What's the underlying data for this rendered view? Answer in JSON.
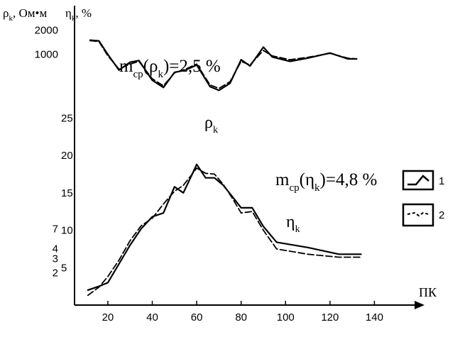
{
  "chart_data": {
    "type": "line",
    "x_axis": {
      "label": "ПК",
      "ticks": [
        20,
        40,
        60,
        80,
        100,
        120,
        140
      ],
      "range": [
        5,
        160
      ]
    },
    "rho_axis": {
      "label": "ρk, Ом•м",
      "scale": "log",
      "ticks": [
        2,
        3,
        4,
        7,
        1000,
        2000
      ],
      "tick_labels": [
        "2",
        "3",
        "4",
        "7",
        "1000",
        "2000"
      ],
      "range": [
        0.8,
        4000
      ]
    },
    "eta_axis": {
      "label": "ηk, %",
      "ticks": [
        5,
        10,
        15,
        20,
        25
      ],
      "range": [
        0,
        40
      ]
    },
    "annotations": {
      "m_rho": "mср(ρk)=2,5 %",
      "m_eta": "mср(ηk)=4,8 %",
      "rho_curve": "ρk",
      "eta_curve": "ηk"
    },
    "legend": {
      "position": "right",
      "items": [
        {
          "label": "1",
          "style": "solid"
        },
        {
          "label": "2",
          "style": "dashed"
        }
      ]
    },
    "series": [
      {
        "name": "ρk 1",
        "axis": "rho",
        "style": "solid",
        "x": [
          12,
          16,
          20,
          25,
          30,
          34,
          40,
          45,
          50,
          55,
          60,
          66,
          70,
          75,
          80,
          84,
          90,
          94,
          102,
          110,
          120,
          128,
          132
        ],
        "y": [
          1500,
          1470,
          1000,
          640,
          800,
          840,
          480,
          390,
          600,
          640,
          740,
          400,
          360,
          440,
          860,
          720,
          1230,
          930,
          820,
          900,
          1040,
          880,
          880
        ]
      },
      {
        "name": "ρk 2",
        "axis": "rho",
        "style": "dashed",
        "x": [
          12,
          16,
          20,
          25,
          30,
          34,
          40,
          45,
          50,
          55,
          60,
          66,
          70,
          75,
          80,
          84,
          90,
          94,
          102,
          110,
          120,
          128,
          132
        ],
        "y": [
          1480,
          1440,
          960,
          660,
          760,
          820,
          500,
          410,
          590,
          660,
          760,
          420,
          380,
          460,
          820,
          740,
          1120,
          960,
          860,
          920,
          1030,
          900,
          880
        ]
      },
      {
        "name": "ηk 1",
        "axis": "eta",
        "style": "solid",
        "x": [
          11,
          16,
          20,
          25,
          30,
          35,
          40,
          45,
          50,
          54,
          58,
          60,
          64,
          68,
          72,
          76,
          80,
          85,
          90,
          96,
          110,
          124,
          134
        ],
        "y": [
          2,
          2.5,
          3,
          5.5,
          8,
          10.2,
          11.8,
          12.3,
          15.8,
          15,
          17.5,
          18.8,
          17,
          17,
          16,
          14.5,
          13,
          13,
          10.5,
          8.4,
          7.7,
          6.8,
          6.8
        ]
      },
      {
        "name": "ηk 2",
        "axis": "eta",
        "style": "dashed",
        "x": [
          11,
          16,
          20,
          25,
          30,
          35,
          40,
          45,
          50,
          54,
          58,
          60,
          64,
          68,
          72,
          76,
          80,
          85,
          90,
          96,
          110,
          124,
          134
        ],
        "y": [
          1.3,
          2.4,
          3.8,
          6,
          8.6,
          10.6,
          11.6,
          13.5,
          15.2,
          16,
          17.5,
          18.3,
          17.6,
          17.5,
          16.1,
          14.3,
          12.3,
          12.5,
          10,
          7.5,
          6.8,
          6.4,
          6.4
        ]
      }
    ]
  }
}
